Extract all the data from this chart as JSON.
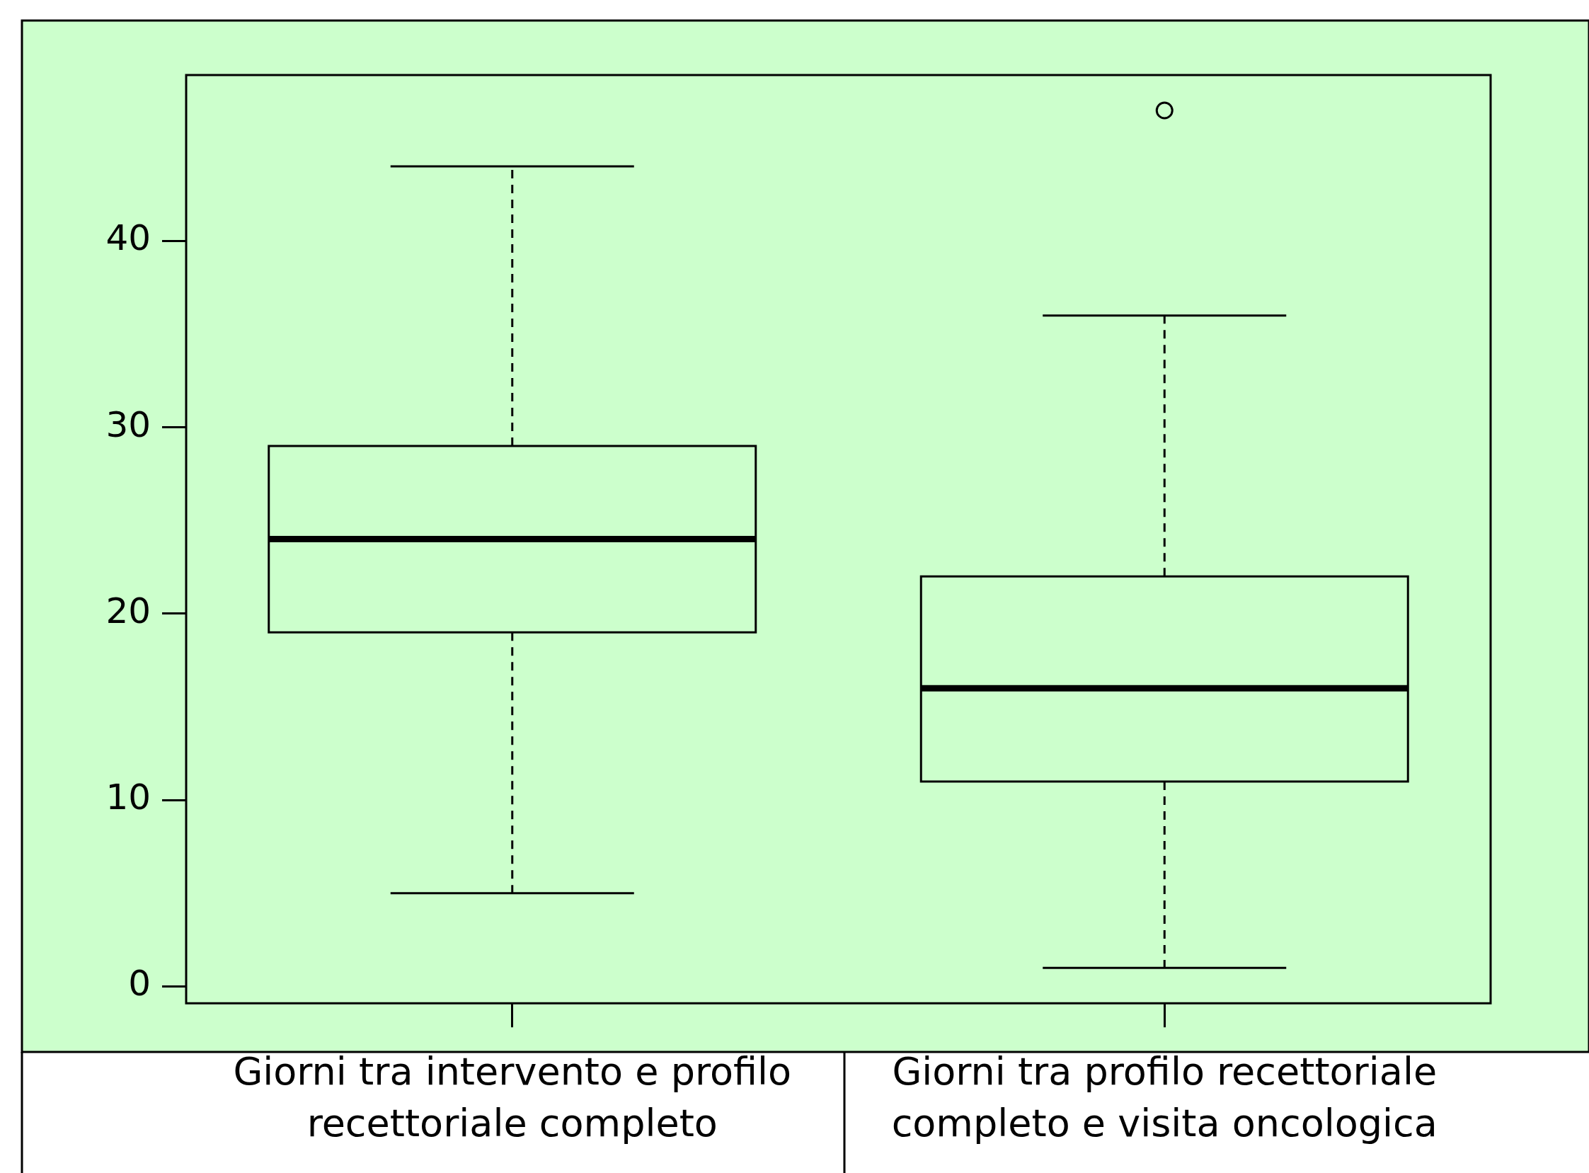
{
  "chart_data": {
    "type": "box",
    "categories": [
      "Giorni tra intervento e profilo recettoriale completo",
      "Giorni tra profilo recettoriale completo e visita oncologica"
    ],
    "boxes": [
      {
        "low": 5,
        "q1": 19,
        "median": 24,
        "q3": 29,
        "high": 44
      },
      {
        "low": 1,
        "q1": 11,
        "median": 16,
        "q3": 22,
        "high": 36,
        "outliers": [
          47
        ]
      }
    ],
    "ylim": [
      -0.9,
      48.9
    ],
    "yticks": [
      0,
      10,
      20,
      30,
      40
    ],
    "grid": false
  }
}
